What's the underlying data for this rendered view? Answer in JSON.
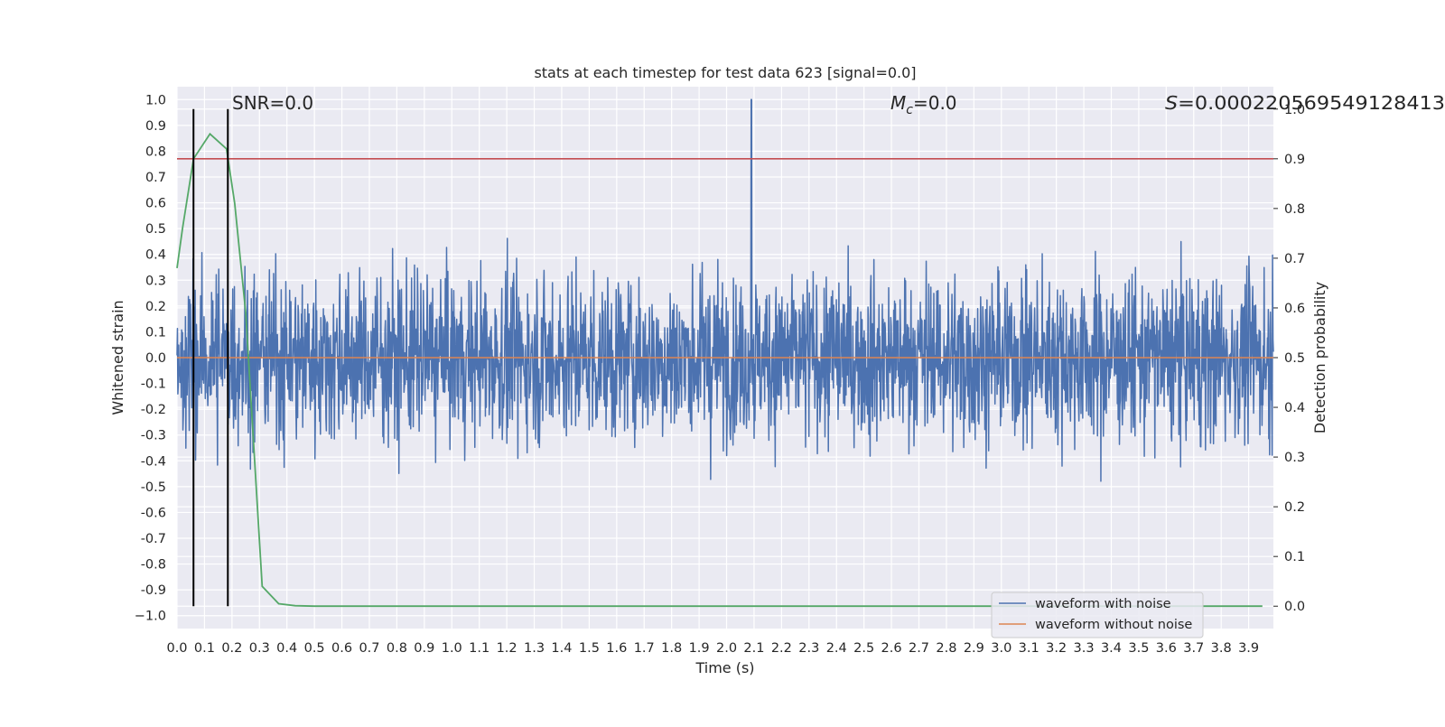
{
  "chart_data": {
    "type": "line",
    "title": "stats at each timestep for test data 623 [signal=0.0]",
    "xlabel": "Time (s)",
    "ylabel": "Whitened strain",
    "y2label": "Detection probability",
    "xlim": [
      0.0,
      3.99
    ],
    "ylim": [
      -1.05,
      1.05
    ],
    "y2lim": [
      -0.045,
      1.045
    ],
    "x_ticks": [
      "0.0",
      "0.1",
      "0.2",
      "0.3",
      "0.4",
      "0.5",
      "0.6",
      "0.7",
      "0.8",
      "0.9",
      "1.0",
      "1.1",
      "1.2",
      "1.3",
      "1.4",
      "1.5",
      "1.6",
      "1.7",
      "1.8",
      "1.9",
      "2.0",
      "2.1",
      "2.2",
      "2.3",
      "2.4",
      "2.5",
      "2.6",
      "2.7",
      "2.8",
      "2.9",
      "3.0",
      "3.1",
      "3.2",
      "3.3",
      "3.4",
      "3.5",
      "3.6",
      "3.7",
      "3.8",
      "3.9"
    ],
    "y_ticks": [
      "1.0",
      "0.9",
      "0.8",
      "0.7",
      "0.6",
      "0.5",
      "0.4",
      "0.3",
      "0.2",
      "0.1",
      "0.0",
      "-0.1",
      "-0.2",
      "-0.3",
      "-0.4",
      "-0.5",
      "-0.6",
      "-0.7",
      "-0.8",
      "-0.9",
      "−1.0"
    ],
    "y2_ticks": [
      "1.0",
      "0.9",
      "0.8",
      "0.7",
      "0.6",
      "0.5",
      "0.4",
      "0.3",
      "0.2",
      "0.1",
      "0.0"
    ],
    "annotations": {
      "snr": "SNR=0.0",
      "mc_symbol": "M",
      "mc_sub": "c",
      "mc_value": "=0.0",
      "s_symbol": "S",
      "s_value": "=0.000220569549128413"
    },
    "series": [
      {
        "name": "waveform with noise",
        "color": "#4c72b0",
        "style": "dense noise, peak 1.0 at t=2.09 s",
        "axis": "left"
      },
      {
        "name": "waveform without noise",
        "color": "#dd8452",
        "y": 0.0,
        "axis": "left"
      },
      {
        "color": "#55a868",
        "axis": "right",
        "x": [
          0.0,
          0.02,
          0.06,
          0.12,
          0.18,
          0.21,
          0.25,
          0.31,
          0.37,
          0.43,
          0.5,
          3.95
        ],
        "y": [
          0.68,
          0.76,
          0.9,
          0.95,
          0.92,
          0.81,
          0.59,
          0.04,
          0.005,
          0.001,
          0.0,
          0.0
        ]
      },
      {
        "color": "#c44e52",
        "y": 0.9,
        "axis": "right"
      }
    ],
    "vlines": [
      0.06,
      0.185
    ],
    "vline_color": "#000000",
    "legend_position": "lower right",
    "grid": true
  }
}
